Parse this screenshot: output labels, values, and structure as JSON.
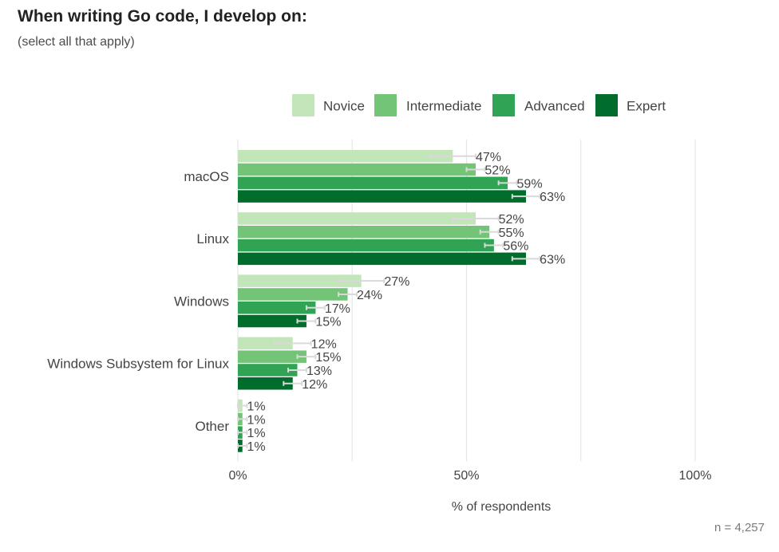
{
  "title": "When writing Go code, I develop on:",
  "subtitle": "(select all that apply)",
  "n_label": "n =  4,257",
  "chart_data": {
    "type": "bar",
    "orientation": "horizontal",
    "categories": [
      "macOS",
      "Linux",
      "Windows",
      "Windows Subsystem for Linux",
      "Other"
    ],
    "series": [
      {
        "name": "Novice",
        "color": "#c2e6b9",
        "values": [
          47,
          52,
          27,
          12,
          1
        ],
        "error": [
          [
            42,
            52
          ],
          [
            47,
            57
          ],
          [
            22,
            32
          ],
          [
            8,
            16
          ],
          [
            0,
            2
          ]
        ]
      },
      {
        "name": "Intermediate",
        "color": "#73c476",
        "values": [
          52,
          55,
          24,
          15,
          1
        ],
        "error": [
          [
            50,
            54
          ],
          [
            53,
            57
          ],
          [
            22,
            26
          ],
          [
            13,
            17
          ],
          [
            0,
            2
          ]
        ]
      },
      {
        "name": "Advanced",
        "color": "#31a354",
        "values": [
          59,
          56,
          17,
          13,
          1
        ],
        "error": [
          [
            57,
            61
          ],
          [
            54,
            58
          ],
          [
            15,
            19
          ],
          [
            11,
            15
          ],
          [
            0,
            2
          ]
        ]
      },
      {
        "name": "Expert",
        "color": "#006d2c",
        "values": [
          63,
          63,
          15,
          12,
          1
        ],
        "error": [
          [
            60,
            66
          ],
          [
            60,
            66
          ],
          [
            13,
            17
          ],
          [
            10,
            14
          ],
          [
            0,
            2
          ]
        ]
      }
    ],
    "value_labels": [
      [
        "47%",
        "52%",
        "27%",
        "12%",
        "1%"
      ],
      [
        "52%",
        "55%",
        "24%",
        "15%",
        "1%"
      ],
      [
        "59%",
        "56%",
        "17%",
        "13%",
        "1%"
      ],
      [
        "63%",
        "63%",
        "15%",
        "12%",
        "1%"
      ]
    ],
    "xlim": [
      0,
      100
    ],
    "x_ticks": [
      0,
      50,
      100
    ],
    "x_tick_labels": [
      "0%",
      "50%",
      "100%"
    ],
    "minor_gridlines": [
      25,
      75
    ],
    "xlabel": "% of respondents",
    "ylabel": "",
    "grid": true,
    "legend_position": "top-right"
  }
}
